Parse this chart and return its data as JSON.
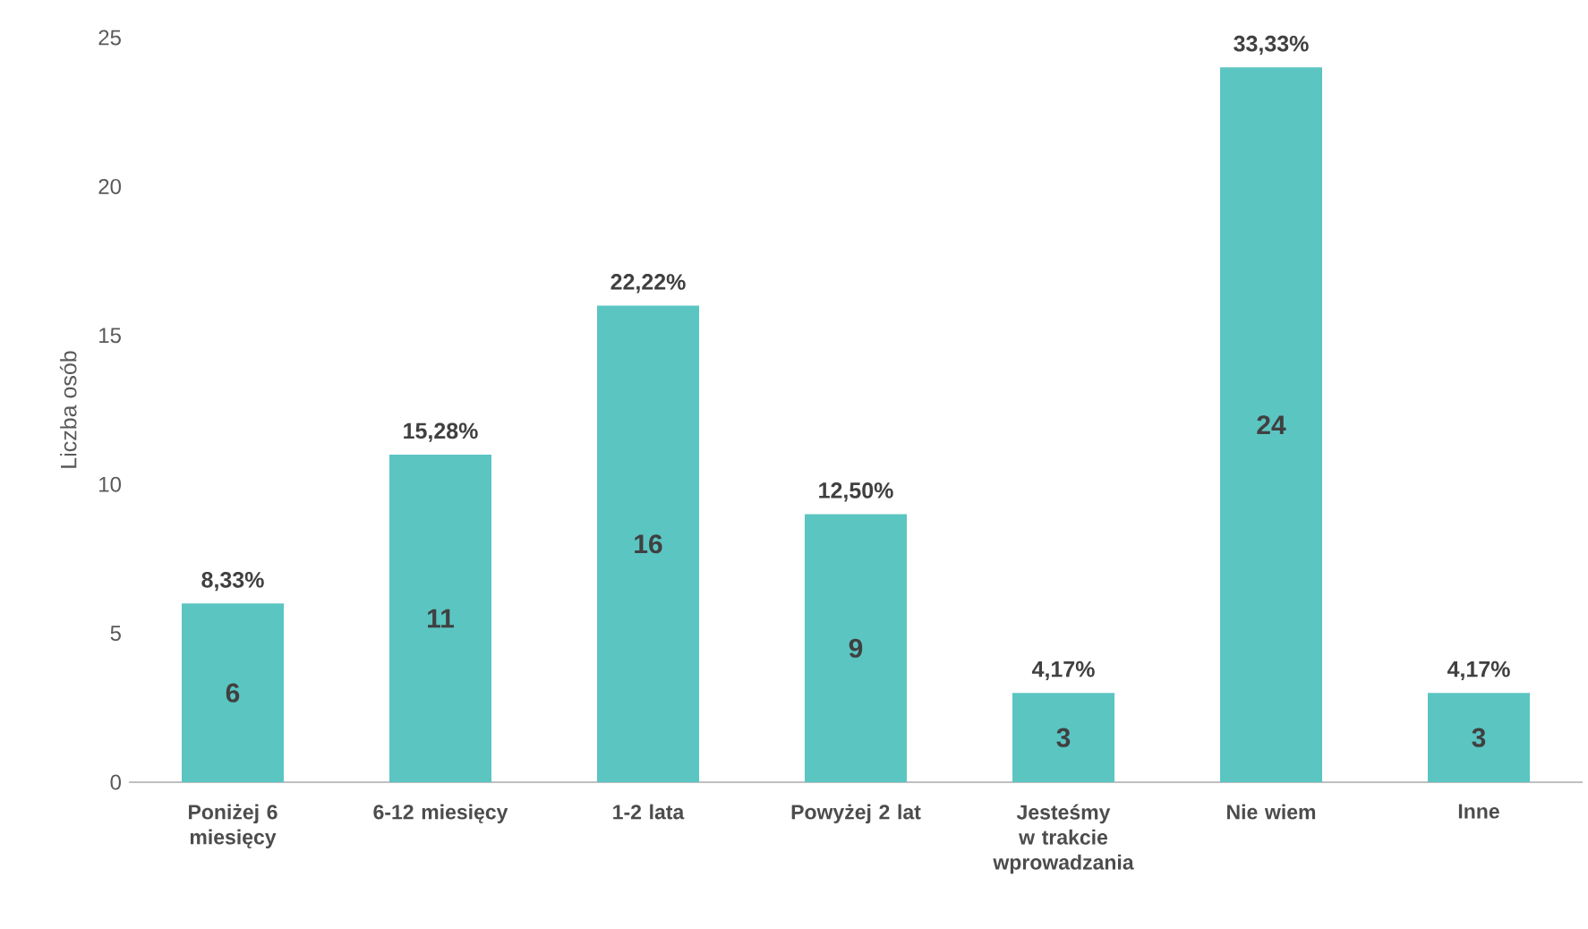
{
  "chart_data": {
    "type": "bar",
    "ylabel": "Liczba osób",
    "categories": [
      "Poniżej 6 miesięcy",
      "6-12 miesięcy",
      "1-2 lata",
      "Powyżej 2 lat",
      "Jesteśmy w trakcie wprowadzania",
      "Nie wiem",
      "Inne"
    ],
    "values": [
      6,
      11,
      16,
      9,
      3,
      24,
      3
    ],
    "value_labels": [
      "6",
      "11",
      "16",
      "9",
      "3",
      "24",
      "3"
    ],
    "annotations": [
      {
        "text": "8,33%",
        "x": "Poniżej 6 miesięcy",
        "y": 6
      },
      {
        "text": "15,28%",
        "x": "6-12 miesięcy",
        "y": 11
      },
      {
        "text": "22,22%",
        "x": "1-2 lata",
        "y": 16
      },
      {
        "text": "12,50%",
        "x": "Powyżej 2 lat",
        "y": 9
      },
      {
        "text": "4,17%",
        "x": "Jesteśmy w trakcie wprowadzania",
        "y": 3
      },
      {
        "text": "33,33%",
        "x": "Nie wiem",
        "y": 24
      },
      {
        "text": "4,17%",
        "x": "Inne",
        "y": 3
      }
    ],
    "color": "#5bc5c2",
    "ylim": [
      0,
      25
    ],
    "yticks": [
      0,
      5,
      10,
      15,
      20,
      25
    ],
    "grid": false
  }
}
